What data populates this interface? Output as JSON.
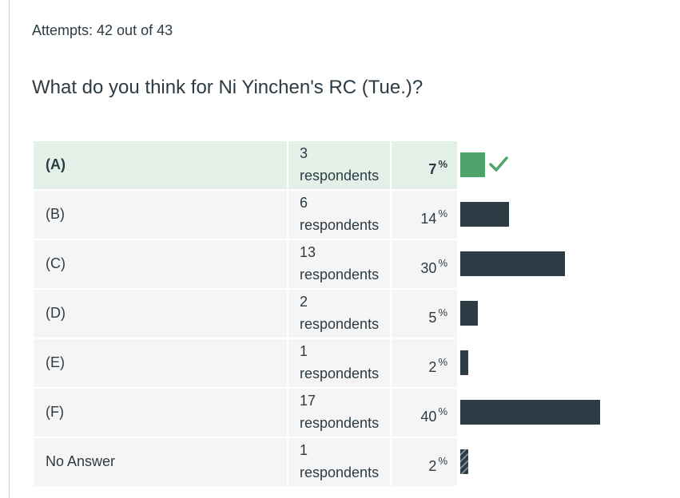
{
  "attempts_text": "Attempts: 42 out of 43",
  "question": "What do you think for Ni Yinchen's RC (Tue.)?",
  "percent_sign": "%",
  "colors": {
    "correct_bar": "#4ea36b",
    "bar": "#2d3b45",
    "correct_row_bg": "#e3f0e7",
    "row_bg": "#f5f5f5"
  },
  "answers": [
    {
      "label": "(A)",
      "count": "3",
      "unit": "respondents",
      "percent": "7",
      "correct": true,
      "fraction": 0.07
    },
    {
      "label": "(B)",
      "count": "6",
      "unit": "respondents",
      "percent": "14",
      "correct": false,
      "fraction": 0.14
    },
    {
      "label": "(C)",
      "count": "13",
      "unit": "respondents",
      "percent": "30",
      "correct": false,
      "fraction": 0.3
    },
    {
      "label": "(D)",
      "count": "2",
      "unit": "respondents",
      "percent": "5",
      "correct": false,
      "fraction": 0.05
    },
    {
      "label": "(E)",
      "count": "1",
      "unit": "respondents",
      "percent": "2",
      "correct": false,
      "fraction": 0.02
    },
    {
      "label": "(F)",
      "count": "17",
      "unit": "respondents",
      "percent": "40",
      "correct": false,
      "fraction": 0.4
    },
    {
      "label": "No Answer",
      "count": "1",
      "unit": "respondents",
      "percent": "2",
      "correct": false,
      "fraction": 0.02,
      "no_answer": true
    }
  ]
}
